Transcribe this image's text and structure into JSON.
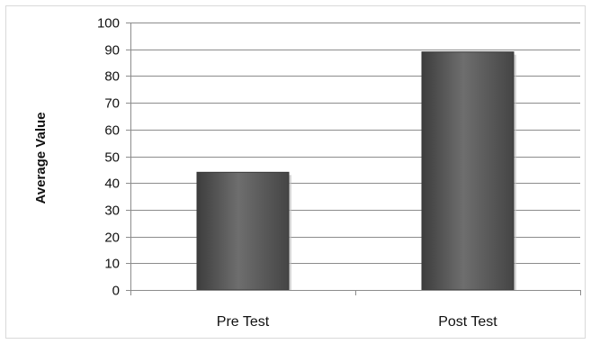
{
  "chart_data": {
    "type": "bar",
    "categories": [
      "Pre Test",
      "Post Test"
    ],
    "values": [
      44,
      89
    ],
    "title": "",
    "xlabel": "",
    "ylabel": "Average Value",
    "ylim": [
      0,
      100
    ],
    "yticks": [
      0,
      10,
      20,
      30,
      40,
      50,
      60,
      70,
      80,
      90,
      100
    ],
    "grid": true,
    "legend": "none",
    "colors": {
      "bar_fill": "#5b5b5b",
      "bar_edge": "#3a3a3a",
      "grid": "#8c8c8c",
      "text": "#111111"
    }
  }
}
